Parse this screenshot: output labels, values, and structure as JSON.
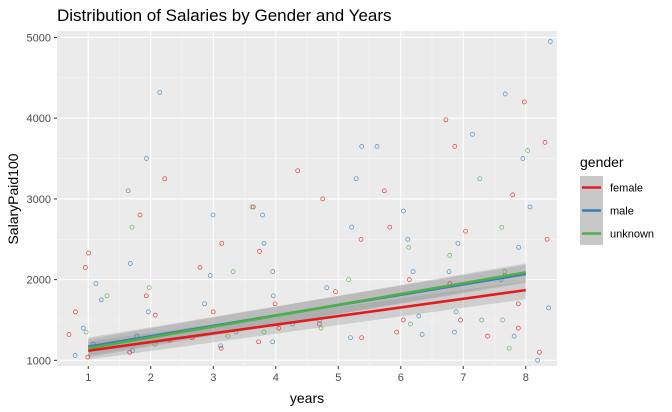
{
  "chart_data": {
    "type": "scatter",
    "title": "Distribution of Salaries by Gender and Years",
    "xlabel": "years",
    "ylabel": "SalaryPaid100",
    "xlim": [
      0.5,
      8.5
    ],
    "ylim": [
      930,
      5080
    ],
    "x_ticks": [
      1,
      2,
      3,
      4,
      5,
      6,
      7,
      8
    ],
    "y_ticks": [
      1000,
      2000,
      3000,
      4000,
      5000
    ],
    "grid": true,
    "legend": {
      "title": "gender",
      "position": "right"
    },
    "series": [
      {
        "name": "female",
        "color": "#e41a1c",
        "fit_line": {
          "x": [
            1,
            8
          ],
          "y": [
            1120,
            1870
          ]
        },
        "points": [
          [
            1,
            1040
          ],
          [
            1,
            1150
          ],
          [
            1,
            1320
          ],
          [
            1,
            1600
          ],
          [
            1,
            2150
          ],
          [
            1,
            2330
          ],
          [
            2,
            1100
          ],
          [
            2,
            1250
          ],
          [
            2,
            1560
          ],
          [
            2,
            1800
          ],
          [
            2,
            2800
          ],
          [
            2,
            3250
          ],
          [
            3,
            1150
          ],
          [
            3,
            1280
          ],
          [
            3,
            1600
          ],
          [
            3,
            2150
          ],
          [
            3,
            2450
          ],
          [
            4,
            1230
          ],
          [
            4,
            1400
          ],
          [
            4,
            1700
          ],
          [
            4,
            2350
          ],
          [
            4,
            2900
          ],
          [
            4,
            3350
          ],
          [
            5,
            1280
          ],
          [
            5,
            1450
          ],
          [
            5,
            1850
          ],
          [
            5,
            2500
          ],
          [
            5,
            3000
          ],
          [
            6,
            1350
          ],
          [
            6,
            1500
          ],
          [
            6,
            2000
          ],
          [
            6,
            2650
          ],
          [
            6,
            3100
          ],
          [
            7,
            1300
          ],
          [
            7,
            1500
          ],
          [
            7,
            1950
          ],
          [
            7,
            2600
          ],
          [
            7,
            3650
          ],
          [
            7,
            3980
          ],
          [
            8,
            1100
          ],
          [
            8,
            1400
          ],
          [
            8,
            1700
          ],
          [
            8,
            2050
          ],
          [
            8,
            2500
          ],
          [
            8,
            3050
          ],
          [
            8,
            3700
          ],
          [
            8,
            4200
          ]
        ]
      },
      {
        "name": "male",
        "color": "#377eb8",
        "fit_line": {
          "x": [
            1,
            8
          ],
          "y": [
            1170,
            2070
          ]
        },
        "points": [
          [
            1,
            1060
          ],
          [
            1,
            1200
          ],
          [
            1,
            1400
          ],
          [
            1,
            1750
          ],
          [
            1,
            1950
          ],
          [
            2,
            1120
          ],
          [
            2,
            1300
          ],
          [
            2,
            1600
          ],
          [
            2,
            2200
          ],
          [
            2,
            3100
          ],
          [
            2,
            3500
          ],
          [
            2,
            4320
          ],
          [
            3,
            1180
          ],
          [
            3,
            1350
          ],
          [
            3,
            1700
          ],
          [
            3,
            2050
          ],
          [
            3,
            2800
          ],
          [
            4,
            1230
          ],
          [
            4,
            1450
          ],
          [
            4,
            1800
          ],
          [
            4,
            2100
          ],
          [
            4,
            2450
          ],
          [
            4,
            2800
          ],
          [
            5,
            1280
          ],
          [
            5,
            1500
          ],
          [
            5,
            1900
          ],
          [
            5,
            2650
          ],
          [
            5,
            3250
          ],
          [
            5,
            3650
          ],
          [
            6,
            1320
          ],
          [
            6,
            1550
          ],
          [
            6,
            2100
          ],
          [
            6,
            2500
          ],
          [
            6,
            2850
          ],
          [
            6,
            3650
          ],
          [
            7,
            1350
          ],
          [
            7,
            1600
          ],
          [
            7,
            2100
          ],
          [
            7,
            2450
          ],
          [
            7,
            3800
          ],
          [
            8,
            1000
          ],
          [
            8,
            1300
          ],
          [
            8,
            1650
          ],
          [
            8,
            2000
          ],
          [
            8,
            2400
          ],
          [
            8,
            2900
          ],
          [
            8,
            3500
          ],
          [
            8,
            4300
          ],
          [
            8,
            4950
          ]
        ]
      },
      {
        "name": "unknown",
        "color": "#4daf4a",
        "fit_line": {
          "x": [
            1,
            8
          ],
          "y": [
            1150,
            2090
          ]
        },
        "points": [
          [
            1,
            1350
          ],
          [
            1,
            1800
          ],
          [
            2,
            1200
          ],
          [
            2,
            1900
          ],
          [
            2,
            2650
          ],
          [
            3,
            1300
          ],
          [
            3,
            2100
          ],
          [
            4,
            1350
          ],
          [
            4,
            2900
          ],
          [
            5,
            1400
          ],
          [
            5,
            2000
          ],
          [
            6,
            1450
          ],
          [
            6,
            2400
          ],
          [
            7,
            1500
          ],
          [
            7,
            2300
          ],
          [
            7,
            3250
          ],
          [
            8,
            1150
          ],
          [
            8,
            1500
          ],
          [
            8,
            2100
          ],
          [
            8,
            2650
          ],
          [
            8,
            3600
          ]
        ]
      }
    ]
  }
}
